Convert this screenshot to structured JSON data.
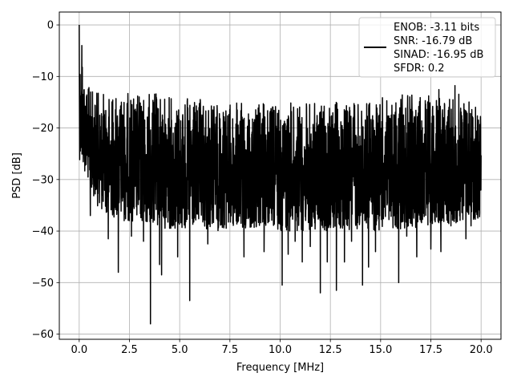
{
  "chart_data": {
    "type": "line",
    "title": "",
    "xlabel": "Frequency [MHz]",
    "ylabel": "PSD [dB]",
    "xlim": [
      -0.99,
      20.99
    ],
    "ylim": [
      -61.0,
      2.5
    ],
    "xticks": [
      0.0,
      2.5,
      5.0,
      7.5,
      10.0,
      12.5,
      15.0,
      17.5,
      20.0
    ],
    "xtick_labels": [
      "0.0",
      "2.5",
      "5.0",
      "7.5",
      "10.0",
      "12.5",
      "15.0",
      "17.5",
      "20.0"
    ],
    "yticks": [
      0,
      -10,
      -20,
      -30,
      -40,
      -50,
      -60
    ],
    "ytick_labels": [
      "0",
      "−10",
      "−20",
      "−30",
      "−40",
      "−50",
      "−60"
    ],
    "grid": true,
    "legend_placement": "upper right",
    "legend_text": [
      "ENOB: -3.11 bits",
      "SNR: -16.79 dB",
      "SINAD: -16.95 dB",
      "SFDR: 0.2"
    ],
    "line_color": "#000000",
    "series": [
      {
        "description": "noise-like PSD trace, dense oscillation between roughly -12 and -38 dB across the band",
        "x_range": [
          0.0,
          20.0
        ],
        "envelope_upper": [
          [
            0.0,
            0.0
          ],
          [
            0.1,
            -9
          ],
          [
            0.15,
            -4
          ],
          [
            0.3,
            -10
          ],
          [
            0.5,
            -12
          ],
          [
            1.0,
            -13
          ],
          [
            2.0,
            -13
          ],
          [
            3.0,
            -13
          ],
          [
            4.0,
            -13
          ],
          [
            5.0,
            -14
          ],
          [
            7.5,
            -15
          ],
          [
            10.0,
            -15
          ],
          [
            12.5,
            -15
          ],
          [
            15.0,
            -14
          ],
          [
            17.5,
            -13
          ],
          [
            18.5,
            -11
          ],
          [
            20.0,
            -15
          ]
        ],
        "envelope_lower": [
          [
            0.0,
            -26
          ],
          [
            1.0,
            -36
          ],
          [
            2.0,
            -38
          ],
          [
            5.0,
            -40
          ],
          [
            10.0,
            -40
          ],
          [
            15.0,
            -40
          ],
          [
            20.0,
            -38
          ]
        ],
        "spikes": [
          {
            "x": 0.0,
            "y": 0.0
          },
          {
            "x": 0.13,
            "y": -4
          },
          {
            "x": 0.55,
            "y": -37
          },
          {
            "x": 1.45,
            "y": -41.5
          },
          {
            "x": 1.95,
            "y": -48
          },
          {
            "x": 2.6,
            "y": -41
          },
          {
            "x": 3.2,
            "y": -42
          },
          {
            "x": 3.55,
            "y": -58
          },
          {
            "x": 4.0,
            "y": -46.5
          },
          {
            "x": 4.1,
            "y": -48.5
          },
          {
            "x": 4.9,
            "y": -45
          },
          {
            "x": 5.5,
            "y": -53.5
          },
          {
            "x": 6.4,
            "y": -42.5
          },
          {
            "x": 8.2,
            "y": -45
          },
          {
            "x": 9.2,
            "y": -44
          },
          {
            "x": 10.1,
            "y": -50.5
          },
          {
            "x": 10.4,
            "y": -44.5
          },
          {
            "x": 10.75,
            "y": -42
          },
          {
            "x": 11.1,
            "y": -46
          },
          {
            "x": 11.5,
            "y": -43
          },
          {
            "x": 12.0,
            "y": -52
          },
          {
            "x": 12.35,
            "y": -46
          },
          {
            "x": 12.8,
            "y": -51.5
          },
          {
            "x": 13.2,
            "y": -46
          },
          {
            "x": 13.55,
            "y": -42
          },
          {
            "x": 14.1,
            "y": -50.5
          },
          {
            "x": 14.4,
            "y": -47
          },
          {
            "x": 14.75,
            "y": -44
          },
          {
            "x": 15.9,
            "y": -50
          },
          {
            "x": 16.3,
            "y": -41
          },
          {
            "x": 16.8,
            "y": -45
          },
          {
            "x": 17.5,
            "y": -43.5
          },
          {
            "x": 18.0,
            "y": -44
          },
          {
            "x": 18.5,
            "y": -39
          },
          {
            "x": 19.25,
            "y": -41.5
          },
          {
            "x": 19.5,
            "y": -39
          },
          {
            "x": 19.8,
            "y": -36
          }
        ]
      }
    ]
  }
}
